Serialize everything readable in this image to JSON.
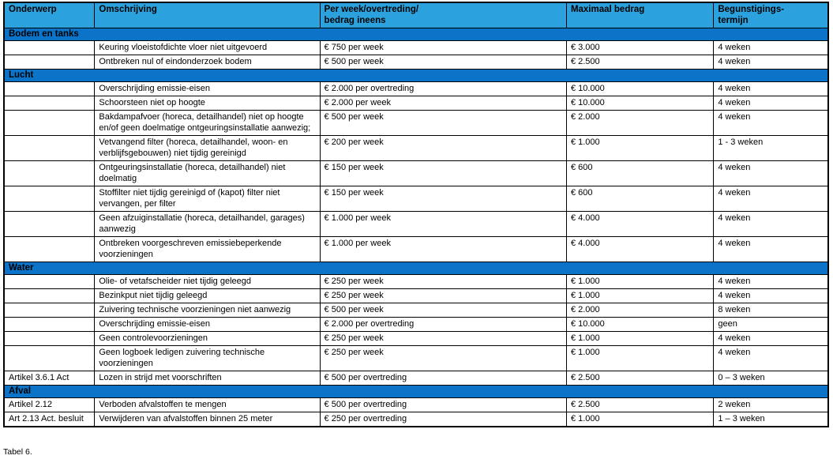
{
  "table": {
    "caption": "Tabel 6.",
    "colors": {
      "header_bg": "#2ba1de",
      "section_bg": "#0b74c9",
      "border": "#000000",
      "text": "#000000"
    },
    "columns": [
      "Onderwerp",
      "Omschrijving",
      "Per week/overtreding/\nbedrag ineens",
      "Maximaal bedrag",
      "Begunstigings-\ntermijn"
    ],
    "sections": [
      {
        "title": "Bodem en tanks",
        "rows": [
          {
            "onderwerp": "",
            "omschrijving": "Keuring vloeistofdichte vloer niet uitgevoerd",
            "per_week": "€ 750 per week",
            "maximaal": "€ 3.000",
            "termijn": "4 weken"
          },
          {
            "onderwerp": "",
            "omschrijving": "Ontbreken nul of eindonderzoek bodem",
            "per_week": "€ 500 per week",
            "maximaal": "€ 2.500",
            "termijn": "4 weken"
          }
        ]
      },
      {
        "title": "Lucht",
        "rows": [
          {
            "onderwerp": "",
            "omschrijving": "Overschrijding emissie-eisen",
            "per_week": "€ 2.000 per overtreding",
            "maximaal": "€ 10.000",
            "termijn": "4 weken"
          },
          {
            "onderwerp": "",
            "omschrijving": "Schoorsteen niet op hoogte",
            "per_week": "€ 2.000 per week",
            "maximaal": "€ 10.000",
            "termijn": "4 weken"
          },
          {
            "onderwerp": "",
            "omschrijving": "Bakdampafvoer (horeca, detailhandel) niet op hoogte en/of geen doelmatige ontgeuringsinstallatie aanwezig;",
            "per_week": "€ 500 per week",
            "maximaal": "€ 2.000",
            "termijn": "4 weken"
          },
          {
            "onderwerp": "",
            "omschrijving": "Vetvangend filter (horeca, detailhandel, woon- en verblijfsgebouwen) niet tijdig gereinigd",
            "per_week": "€ 200 per week",
            "maximaal": "€ 1.000",
            "termijn": "1 - 3 weken"
          },
          {
            "onderwerp": "",
            "omschrijving": "Ontgeuringsinstallatie (horeca, detailhandel) niet doelmatig",
            "per_week": "€ 150 per week",
            "maximaal": "€ 600",
            "termijn": "4 weken"
          },
          {
            "onderwerp": "",
            "omschrijving": "Stoffilter niet tijdig gereinigd of (kapot) filter niet vervangen, per filter",
            "per_week": "€ 150 per week",
            "maximaal": "€ 600",
            "termijn": "4 weken"
          },
          {
            "onderwerp": "",
            "omschrijving": "Geen afzuiginstallatie (horeca, detailhandel, garages) aanwezig",
            "per_week": "€ 1.000 per week",
            "maximaal": "€ 4.000",
            "termijn": "4 weken"
          },
          {
            "onderwerp": "",
            "omschrijving": "Ontbreken voorgeschreven emissiebeperkende voorzieningen",
            "per_week": "€ 1.000 per week",
            "maximaal": "€ 4.000",
            "termijn": "4 weken"
          }
        ]
      },
      {
        "title": "Water",
        "rows": [
          {
            "onderwerp": "",
            "omschrijving": "Olie- of vetafscheider niet tijdig geleegd",
            "per_week": "€ 250 per week",
            "maximaal": "€ 1.000",
            "termijn": "4 weken"
          },
          {
            "onderwerp": "",
            "omschrijving": "Bezinkput niet tijdig geleegd",
            "per_week": "€ 250 per week",
            "maximaal": "€ 1.000",
            "termijn": "4 weken"
          },
          {
            "onderwerp": "",
            "omschrijving": "Zuivering technische voorzieningen niet aanwezig",
            "per_week": "€ 500 per week",
            "maximaal": "€ 2.000",
            "termijn": "8 weken"
          },
          {
            "onderwerp": "",
            "omschrijving": "Overschrijding emissie-eisen",
            "per_week": "€ 2.000 per overtreding",
            "maximaal": "€ 10.000",
            "termijn": "geen"
          },
          {
            "onderwerp": "",
            "omschrijving": "Geen controlevoorzieningen",
            "per_week": "€ 250 per week",
            "maximaal": "€ 1.000",
            "termijn": "4 weken"
          },
          {
            "onderwerp": "",
            "omschrijving": "Geen logboek ledigen zuivering technische voorzieningen",
            "per_week": "€ 250 per week",
            "maximaal": "€ 1.000",
            "termijn": "4 weken"
          },
          {
            "onderwerp": "Artikel 3.6.1 Act",
            "omschrijving": "Lozen in strijd met voorschriften",
            "per_week": "€ 500 per overtreding",
            "maximaal": "€ 2.500",
            "termijn": "0 – 3 weken"
          }
        ]
      },
      {
        "title": "Afval",
        "rows": [
          {
            "onderwerp": "Artikel 2.12",
            "omschrijving": "Verboden afvalstoffen te mengen",
            "per_week": "€ 500 per overtreding",
            "maximaal": "€ 2.500",
            "termijn": "2 weken"
          },
          {
            "onderwerp": "Art 2.13 Act. besluit",
            "omschrijving": "Verwijderen van afvalstoffen binnen 25 meter",
            "per_week": "€ 250 per overtreding",
            "maximaal": "€ 1.000",
            "termijn": "1 – 3 weken"
          }
        ]
      }
    ]
  }
}
